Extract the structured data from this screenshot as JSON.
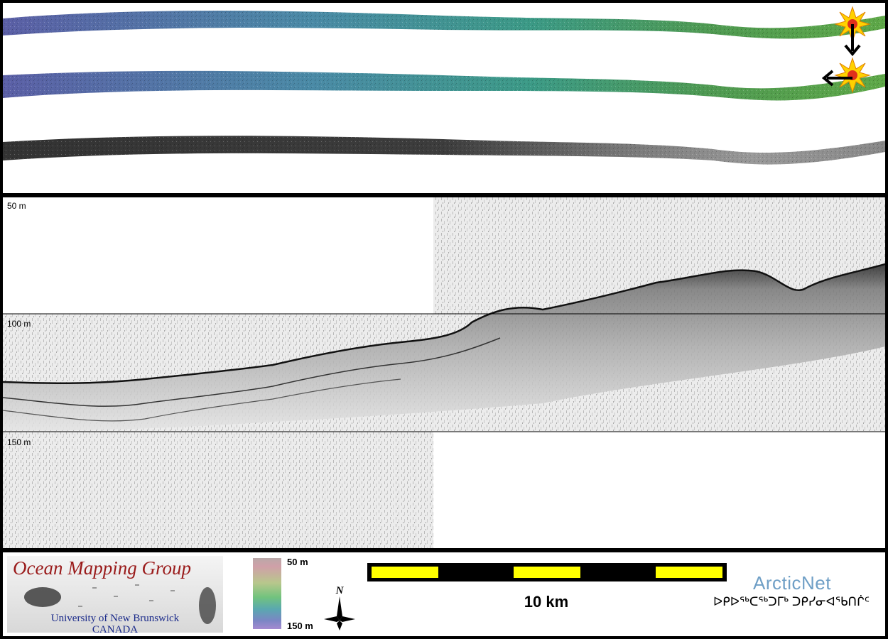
{
  "swaths": {
    "tracks": [
      {
        "kind": "bathymetry-colour"
      },
      {
        "kind": "bathymetry-colour"
      },
      {
        "kind": "backscatter-grey"
      }
    ],
    "markers": [
      {
        "icon": "explosion-icon",
        "arrow": "arrow-down-icon"
      },
      {
        "icon": "explosion-icon",
        "arrow": "arrow-left-icon"
      }
    ]
  },
  "profile": {
    "depth_labels": [
      "50 m",
      "100 m",
      "150 m"
    ]
  },
  "footer": {
    "logo": {
      "title": "Ocean Mapping Group",
      "subtitle_line1": "University of New Brunswick",
      "subtitle_line2": "CANADA"
    },
    "colorbar": {
      "top_label": "50 m",
      "bottom_label": "150 m"
    },
    "north_arrow": {
      "label": "N"
    },
    "scale_bar": {
      "label": "10 km",
      "colors": [
        "#ffff00",
        "#000000"
      ]
    },
    "arcticnet": {
      "name": "ArcticNet",
      "inuktitut": "ᐅᑭᐅᖅᑕᖅᑐᒥᒃ ᑐᑭᓯᓂᐊᖃᑎᒌᑦ"
    }
  }
}
